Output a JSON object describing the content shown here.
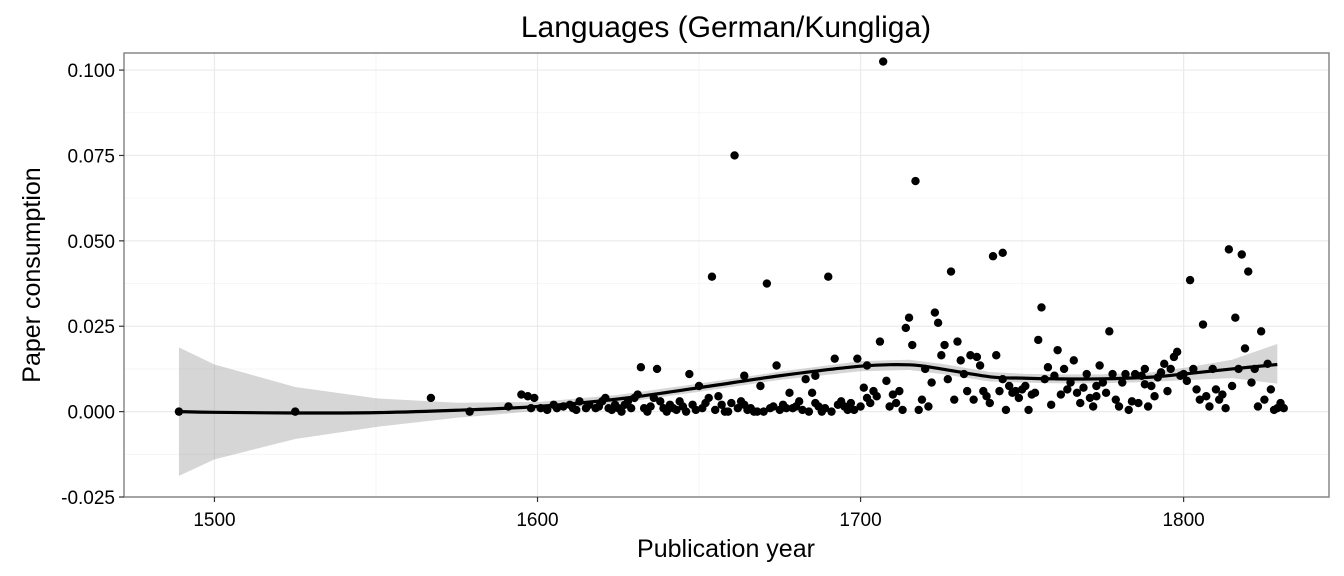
{
  "chart_data": {
    "type": "scatter",
    "title": "Languages (German/Kungliga)",
    "xlabel": "Publication year",
    "ylabel": "Paper consumption",
    "xlim": [
      1472,
      1845
    ],
    "ylim": [
      -0.025,
      0.105
    ],
    "x_ticks": [
      1500,
      1600,
      1700,
      1800
    ],
    "x_tick_labels": [
      "1500",
      "1600",
      "1700",
      "1800"
    ],
    "y_ticks": [
      -0.025,
      0.0,
      0.025,
      0.05,
      0.075,
      0.1
    ],
    "y_tick_labels": [
      "-0.025",
      "0.000",
      "0.025",
      "0.050",
      "0.075",
      "0.100"
    ],
    "grid": true,
    "legend": "none",
    "colors": {
      "points": "#000000",
      "smooth_line": "#000000",
      "confidence_band": "#999999"
    },
    "points": [
      [
        1489,
        0.0
      ],
      [
        1525,
        0.0
      ],
      [
        1567,
        0.004
      ],
      [
        1579,
        0.0
      ],
      [
        1591,
        0.0015
      ],
      [
        1595,
        0.005
      ],
      [
        1597,
        0.0045
      ],
      [
        1598,
        0.001
      ],
      [
        1599,
        0.004
      ],
      [
        1601,
        0.001
      ],
      [
        1603,
        0.0005
      ],
      [
        1605,
        0.002
      ],
      [
        1606,
        0.001
      ],
      [
        1608,
        0.0015
      ],
      [
        1610,
        0.002
      ],
      [
        1611,
        0.001
      ],
      [
        1612,
        0.0005
      ],
      [
        1613,
        0.003
      ],
      [
        1615,
        0.001
      ],
      [
        1616,
        0.002
      ],
      [
        1618,
        0.001
      ],
      [
        1619,
        0.0015
      ],
      [
        1620,
        0.003
      ],
      [
        1621,
        0.004
      ],
      [
        1622,
        0.001
      ],
      [
        1623,
        0.0005
      ],
      [
        1624,
        0.002
      ],
      [
        1625,
        0.001
      ],
      [
        1626,
        0.0
      ],
      [
        1627,
        0.002
      ],
      [
        1628,
        0.003
      ],
      [
        1629,
        0.001
      ],
      [
        1630,
        0.004
      ],
      [
        1631,
        0.005
      ],
      [
        1632,
        0.013
      ],
      [
        1633,
        0.001
      ],
      [
        1634,
        0.0
      ],
      [
        1635,
        0.0015
      ],
      [
        1636,
        0.004
      ],
      [
        1637,
        0.0125
      ],
      [
        1638,
        0.003
      ],
      [
        1639,
        0.001
      ],
      [
        1640,
        0.0
      ],
      [
        1641,
        0.002
      ],
      [
        1642,
        0.001
      ],
      [
        1643,
        0.0005
      ],
      [
        1644,
        0.003
      ],
      [
        1645,
        0.0015
      ],
      [
        1646,
        0.0
      ],
      [
        1647,
        0.011
      ],
      [
        1648,
        0.002
      ],
      [
        1649,
        0.0005
      ],
      [
        1650,
        0.0075
      ],
      [
        1651,
        0.001
      ],
      [
        1652,
        0.0025
      ],
      [
        1653,
        0.004
      ],
      [
        1654,
        0.0395
      ],
      [
        1655,
        0.0005
      ],
      [
        1656,
        0.0045
      ],
      [
        1657,
        0.002
      ],
      [
        1658,
        0.0
      ],
      [
        1659,
        0.0
      ],
      [
        1660,
        0.0025
      ],
      [
        1661,
        0.075
      ],
      [
        1662,
        0.001
      ],
      [
        1663,
        0.003
      ],
      [
        1664,
        0.002
      ],
      [
        1665,
        0.0005
      ],
      [
        1666,
        0.001
      ],
      [
        1667,
        0.0
      ],
      [
        1668,
        0.0
      ],
      [
        1669,
        0.0075
      ],
      [
        1670,
        0.0
      ],
      [
        1671,
        0.0375
      ],
      [
        1672,
        0.001
      ],
      [
        1673,
        0.0015
      ],
      [
        1674,
        0.0135
      ],
      [
        1675,
        0.0005
      ],
      [
        1676,
        0.002
      ],
      [
        1677,
        0.001
      ],
      [
        1678,
        0.0055
      ],
      [
        1679,
        0.001
      ],
      [
        1680,
        0.0015
      ],
      [
        1681,
        0.003
      ],
      [
        1682,
        0.0005
      ],
      [
        1683,
        0.0095
      ],
      [
        1684,
        0.0
      ],
      [
        1685,
        0.0055
      ],
      [
        1686,
        0.0025
      ],
      [
        1687,
        0.0015
      ],
      [
        1688,
        0.0
      ],
      [
        1689,
        0.001
      ],
      [
        1690,
        0.0395
      ],
      [
        1691,
        0.0
      ],
      [
        1692,
        0.0155
      ],
      [
        1693,
        0.002
      ],
      [
        1694,
        0.003
      ],
      [
        1695,
        0.0015
      ],
      [
        1696,
        0.0005
      ],
      [
        1697,
        0.0025
      ],
      [
        1698,
        0.0005
      ],
      [
        1699,
        0.0155
      ],
      [
        1700,
        0.0015
      ],
      [
        1701,
        0.007
      ],
      [
        1702,
        0.004
      ],
      [
        1703,
        0.0025
      ],
      [
        1704,
        0.006
      ],
      [
        1705,
        0.0045
      ],
      [
        1706,
        0.0205
      ],
      [
        1707,
        0.1025
      ],
      [
        1708,
        0.009
      ],
      [
        1709,
        0.0015
      ],
      [
        1710,
        0.005
      ],
      [
        1711,
        0.0025
      ],
      [
        1712,
        0.006
      ],
      [
        1713,
        0.0005
      ],
      [
        1714,
        0.0245
      ],
      [
        1715,
        0.0275
      ],
      [
        1716,
        0.0195
      ],
      [
        1717,
        0.0675
      ],
      [
        1718,
        0.0005
      ],
      [
        1719,
        0.0035
      ],
      [
        1720,
        0.0125
      ],
      [
        1721,
        0.0015
      ],
      [
        1722,
        0.0085
      ],
      [
        1723,
        0.029
      ],
      [
        1724,
        0.026
      ],
      [
        1725,
        0.0165
      ],
      [
        1726,
        0.0195
      ],
      [
        1727,
        0.0095
      ],
      [
        1728,
        0.041
      ],
      [
        1729,
        0.0035
      ],
      [
        1730,
        0.0205
      ],
      [
        1731,
        0.015
      ],
      [
        1732,
        0.011
      ],
      [
        1733,
        0.006
      ],
      [
        1734,
        0.0165
      ],
      [
        1735,
        0.0035
      ],
      [
        1736,
        0.016
      ],
      [
        1737,
        0.0135
      ],
      [
        1738,
        0.006
      ],
      [
        1739,
        0.0045
      ],
      [
        1740,
        0.0025
      ],
      [
        1741,
        0.0455
      ],
      [
        1742,
        0.0165
      ],
      [
        1743,
        0.006
      ],
      [
        1744,
        0.0465
      ],
      [
        1745,
        0.0005
      ],
      [
        1746,
        0.0075
      ],
      [
        1747,
        0.0055
      ],
      [
        1748,
        0.006
      ],
      [
        1749,
        0.004
      ],
      [
        1750,
        0.0065
      ],
      [
        1751,
        0.0075
      ],
      [
        1752,
        0.0005
      ],
      [
        1753,
        0.005
      ],
      [
        1754,
        0.0055
      ],
      [
        1755,
        0.021
      ],
      [
        1756,
        0.0305
      ],
      [
        1757,
        0.0095
      ],
      [
        1758,
        0.013
      ],
      [
        1759,
        0.002
      ],
      [
        1760,
        0.0105
      ],
      [
        1761,
        0.018
      ],
      [
        1762,
        0.005
      ],
      [
        1763,
        0.0125
      ],
      [
        1764,
        0.0065
      ],
      [
        1765,
        0.0085
      ],
      [
        1766,
        0.015
      ],
      [
        1767,
        0.0055
      ],
      [
        1768,
        0.0025
      ],
      [
        1769,
        0.007
      ],
      [
        1770,
        0.011
      ],
      [
        1771,
        0.004
      ],
      [
        1772,
        0.0015
      ],
      [
        1773,
        0.0045
      ],
      [
        1774,
        0.0135
      ],
      [
        1775,
        0.0085
      ],
      [
        1776,
        0.0055
      ],
      [
        1777,
        0.0235
      ],
      [
        1778,
        0.011
      ],
      [
        1779,
        0.0035
      ],
      [
        1780,
        0.0015
      ],
      [
        1781,
        0.0085
      ],
      [
        1782,
        0.011
      ],
      [
        1783,
        0.0005
      ],
      [
        1784,
        0.003
      ],
      [
        1785,
        0.011
      ],
      [
        1786,
        0.0025
      ],
      [
        1787,
        0.0105
      ],
      [
        1788,
        0.008
      ],
      [
        1789,
        0.0015
      ],
      [
        1790,
        0.0075
      ],
      [
        1791,
        0.0045
      ],
      [
        1792,
        0.01
      ],
      [
        1793,
        0.0115
      ],
      [
        1794,
        0.014
      ],
      [
        1795,
        0.006
      ],
      [
        1796,
        0.0125
      ],
      [
        1797,
        0.016
      ],
      [
        1798,
        0.0175
      ],
      [
        1799,
        0.0105
      ],
      [
        1800,
        0.011
      ],
      [
        1801,
        0.009
      ],
      [
        1802,
        0.0385
      ],
      [
        1803,
        0.0125
      ],
      [
        1804,
        0.0065
      ],
      [
        1805,
        0.0035
      ],
      [
        1806,
        0.0255
      ],
      [
        1807,
        0.0045
      ],
      [
        1808,
        0.0015
      ],
      [
        1809,
        0.0125
      ],
      [
        1810,
        0.0065
      ],
      [
        1811,
        0.0035
      ],
      [
        1812,
        0.005
      ],
      [
        1813,
        0.001
      ],
      [
        1814,
        0.0475
      ],
      [
        1815,
        0.0075
      ],
      [
        1816,
        0.0275
      ],
      [
        1817,
        0.0125
      ],
      [
        1818,
        0.046
      ],
      [
        1819,
        0.0185
      ],
      [
        1820,
        0.041
      ],
      [
        1821,
        0.0085
      ],
      [
        1822,
        0.0125
      ],
      [
        1823,
        0.0015
      ],
      [
        1824,
        0.0235
      ],
      [
        1825,
        0.0035
      ],
      [
        1826,
        0.014
      ],
      [
        1827,
        0.0065
      ],
      [
        1828,
        0.0005
      ],
      [
        1829,
        0.001
      ],
      [
        1830,
        0.0025
      ],
      [
        1831,
        0.001
      ],
      [
        1686,
        0.0105
      ],
      [
        1702,
        0.0135
      ],
      [
        1744,
        0.0095
      ],
      [
        1773,
        0.0075
      ],
      [
        1788,
        0.0125
      ],
      [
        1664,
        0.0105
      ]
    ],
    "smooth_fit": {
      "x": [
        1489,
        1500,
        1525,
        1550,
        1575,
        1600,
        1625,
        1650,
        1675,
        1700,
        1715,
        1725,
        1740,
        1750,
        1760,
        1775,
        1790,
        1800,
        1815,
        1829
      ],
      "y": [
        0.0,
        -0.0002,
        -0.0004,
        -0.0003,
        0.0004,
        0.0015,
        0.0037,
        0.007,
        0.0105,
        0.0133,
        0.0137,
        0.0125,
        0.0102,
        0.0098,
        0.0096,
        0.0096,
        0.0101,
        0.011,
        0.0125,
        0.0138
      ],
      "ci_low": [
        -0.0188,
        -0.014,
        -0.008,
        -0.0045,
        -0.0018,
        0.0002,
        0.0025,
        0.0058,
        0.0093,
        0.0118,
        0.0122,
        0.011,
        0.0088,
        0.0085,
        0.0083,
        0.0083,
        0.0087,
        0.0092,
        0.0098,
        0.0082
      ],
      "ci_high": [
        0.0188,
        0.0138,
        0.0072,
        0.0039,
        0.0026,
        0.0028,
        0.0049,
        0.0082,
        0.0117,
        0.0148,
        0.0152,
        0.014,
        0.0116,
        0.0111,
        0.0109,
        0.0109,
        0.0115,
        0.0128,
        0.0152,
        0.0198
      ]
    }
  }
}
